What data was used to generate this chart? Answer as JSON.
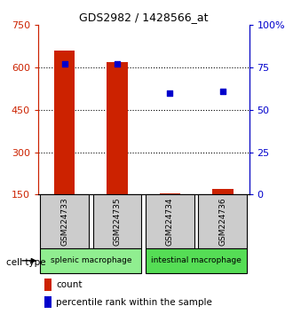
{
  "title": "GDS2982 / 1428566_at",
  "samples": [
    "GSM224733",
    "GSM224735",
    "GSM224734",
    "GSM224736"
  ],
  "counts": [
    660,
    620,
    155,
    170
  ],
  "percentiles": [
    77,
    77,
    60,
    61
  ],
  "ylim_left": [
    150,
    750
  ],
  "ylim_right": [
    0,
    100
  ],
  "yticks_left": [
    150,
    300,
    450,
    600,
    750
  ],
  "yticks_right": [
    0,
    25,
    50,
    75,
    100
  ],
  "ytick_labels_right": [
    "0",
    "25",
    "50",
    "75",
    "100%"
  ],
  "groups": [
    {
      "label": "splenic macrophage",
      "color": "#90EE90",
      "indices": [
        0,
        1
      ]
    },
    {
      "label": "intestinal macrophage",
      "color": "#55DD55",
      "indices": [
        2,
        3
      ]
    }
  ],
  "bar_color": "#CC2200",
  "dot_color": "#0000CC",
  "bar_width": 0.4,
  "sample_box_color": "#CCCCCC",
  "cell_type_label": "cell type",
  "legend_count_label": "count",
  "legend_percentile_label": "percentile rank within the sample"
}
